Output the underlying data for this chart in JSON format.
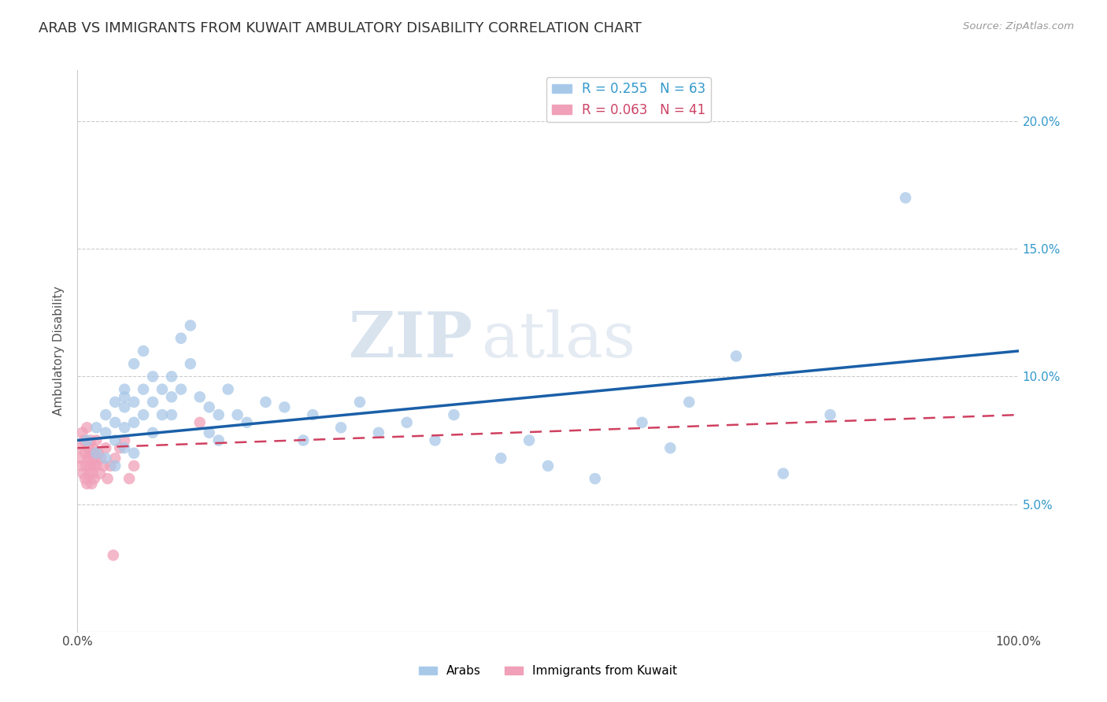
{
  "title": "ARAB VS IMMIGRANTS FROM KUWAIT AMBULATORY DISABILITY CORRELATION CHART",
  "source": "Source: ZipAtlas.com",
  "ylabel": "Ambulatory Disability",
  "xlim": [
    0,
    1.0
  ],
  "ylim": [
    0,
    0.22
  ],
  "yticks": [
    0.05,
    0.1,
    0.15,
    0.2
  ],
  "ytick_labels": [
    "5.0%",
    "10.0%",
    "15.0%",
    "20.0%"
  ],
  "arab_R": 0.255,
  "arab_N": 63,
  "immig_R": 0.063,
  "immig_N": 41,
  "arab_color": "#a8c8e8",
  "arab_line_color": "#1a5fa8",
  "immig_color": "#f0a0b8",
  "immig_line_color": "#d04060",
  "watermark_zip": "ZIP",
  "watermark_atlas": "atlas",
  "arab_x": [
    0.01,
    0.02,
    0.02,
    0.03,
    0.03,
    0.03,
    0.04,
    0.04,
    0.04,
    0.04,
    0.05,
    0.05,
    0.05,
    0.05,
    0.05,
    0.06,
    0.06,
    0.06,
    0.06,
    0.07,
    0.07,
    0.07,
    0.08,
    0.08,
    0.08,
    0.09,
    0.09,
    0.1,
    0.1,
    0.1,
    0.11,
    0.11,
    0.12,
    0.12,
    0.13,
    0.14,
    0.14,
    0.15,
    0.15,
    0.16,
    0.17,
    0.18,
    0.2,
    0.22,
    0.24,
    0.25,
    0.28,
    0.3,
    0.32,
    0.35,
    0.38,
    0.4,
    0.45,
    0.48,
    0.5,
    0.55,
    0.6,
    0.63,
    0.65,
    0.7,
    0.75,
    0.8,
    0.88
  ],
  "arab_y": [
    0.075,
    0.08,
    0.07,
    0.085,
    0.078,
    0.068,
    0.09,
    0.082,
    0.075,
    0.065,
    0.095,
    0.088,
    0.08,
    0.092,
    0.072,
    0.105,
    0.09,
    0.082,
    0.07,
    0.11,
    0.095,
    0.085,
    0.1,
    0.09,
    0.078,
    0.095,
    0.085,
    0.1,
    0.092,
    0.085,
    0.115,
    0.095,
    0.12,
    0.105,
    0.092,
    0.088,
    0.078,
    0.085,
    0.075,
    0.095,
    0.085,
    0.082,
    0.09,
    0.088,
    0.075,
    0.085,
    0.08,
    0.09,
    0.078,
    0.082,
    0.075,
    0.085,
    0.068,
    0.075,
    0.065,
    0.06,
    0.082,
    0.072,
    0.09,
    0.108,
    0.062,
    0.085,
    0.17
  ],
  "immig_x": [
    0.002,
    0.003,
    0.004,
    0.005,
    0.006,
    0.007,
    0.008,
    0.008,
    0.009,
    0.01,
    0.01,
    0.011,
    0.012,
    0.012,
    0.013,
    0.014,
    0.014,
    0.015,
    0.015,
    0.016,
    0.016,
    0.017,
    0.018,
    0.018,
    0.019,
    0.02,
    0.02,
    0.022,
    0.024,
    0.025,
    0.028,
    0.03,
    0.032,
    0.035,
    0.038,
    0.04,
    0.045,
    0.05,
    0.055,
    0.06,
    0.13
  ],
  "immig_y": [
    0.072,
    0.068,
    0.065,
    0.078,
    0.062,
    0.075,
    0.07,
    0.06,
    0.065,
    0.08,
    0.058,
    0.068,
    0.072,
    0.062,
    0.07,
    0.065,
    0.075,
    0.068,
    0.058,
    0.072,
    0.062,
    0.065,
    0.07,
    0.06,
    0.068,
    0.075,
    0.065,
    0.07,
    0.062,
    0.068,
    0.065,
    0.072,
    0.06,
    0.065,
    0.03,
    0.068,
    0.072,
    0.075,
    0.06,
    0.065,
    0.082
  ]
}
